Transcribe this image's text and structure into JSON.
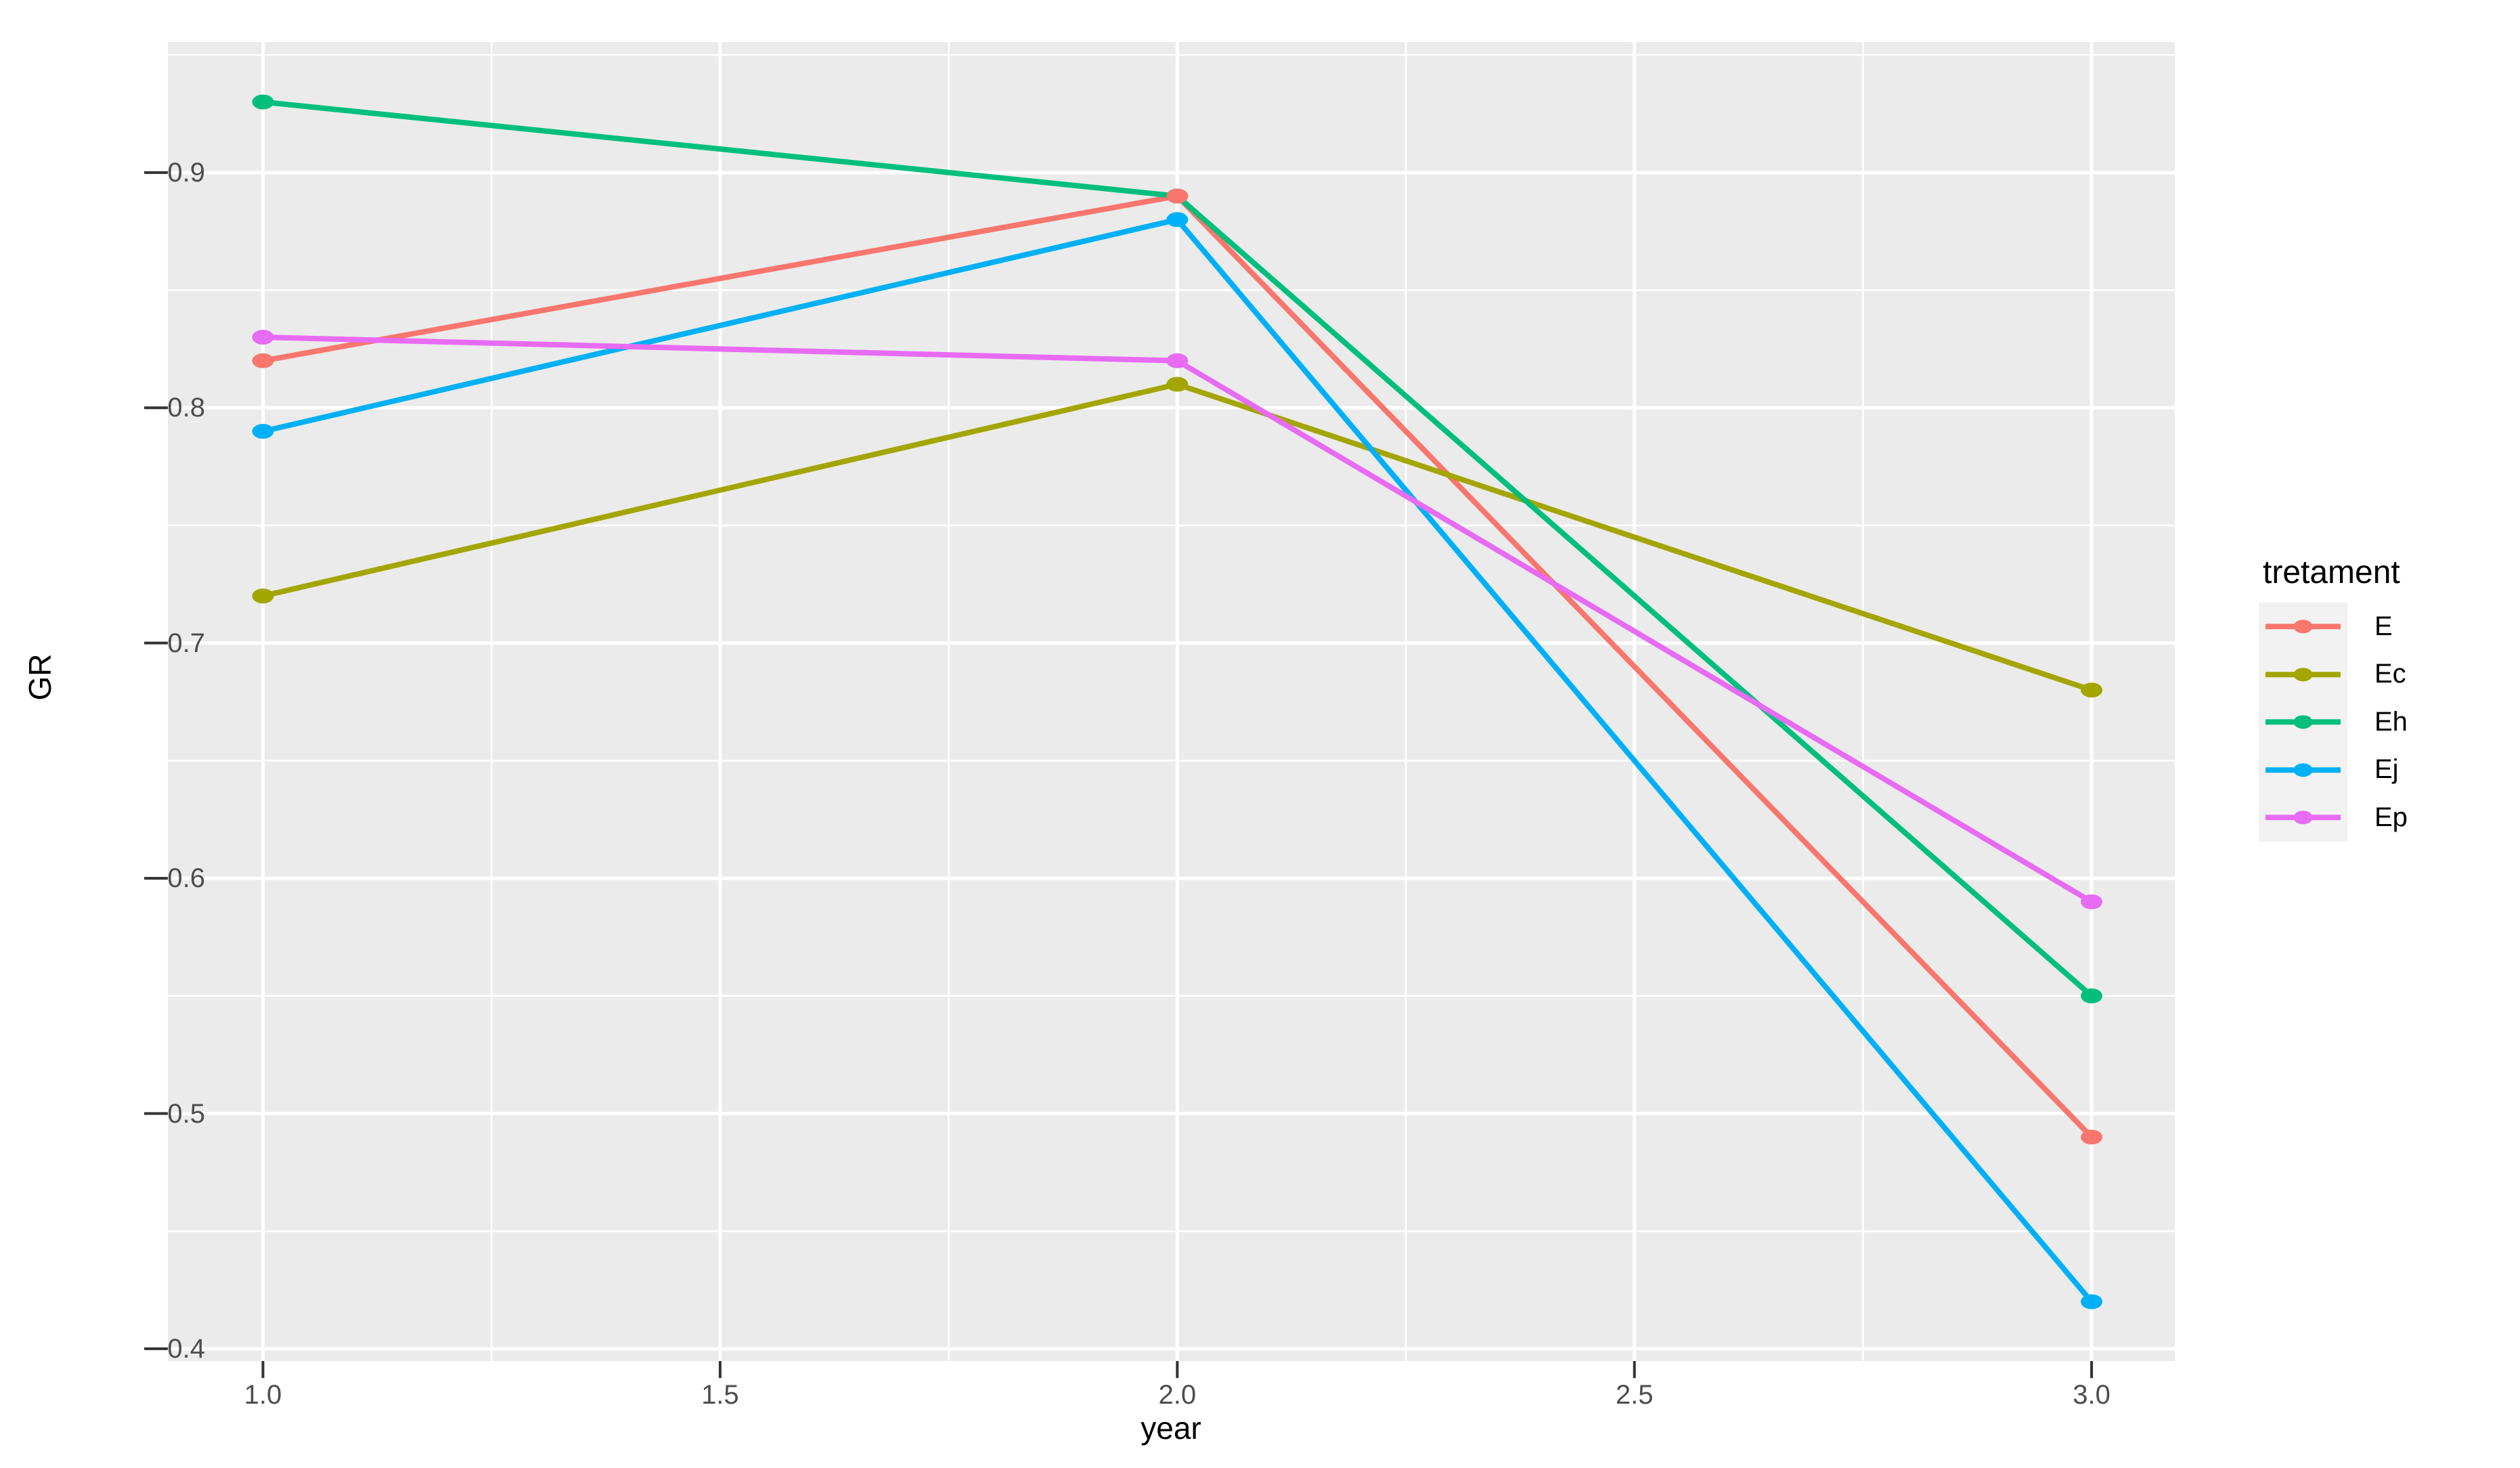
{
  "figure": {
    "background": "#FFFFFF"
  },
  "chart_data": {
    "type": "line",
    "title": "",
    "xlabel": "year",
    "ylabel": "GR",
    "x": [
      1,
      2,
      3
    ],
    "series": [
      {
        "name": "E",
        "color": "#F8766D",
        "values": [
          0.82,
          0.89,
          0.49
        ]
      },
      {
        "name": "Ec",
        "color": "#A3A500",
        "values": [
          0.72,
          0.81,
          0.68
        ]
      },
      {
        "name": "Eh",
        "color": "#00BF7D",
        "values": [
          0.93,
          0.89,
          0.55
        ]
      },
      {
        "name": "Ej",
        "color": "#00B0F6",
        "values": [
          0.79,
          0.88,
          0.42
        ]
      },
      {
        "name": "Ep",
        "color": "#E76BF3",
        "values": [
          0.83,
          0.82,
          0.59
        ]
      }
    ],
    "legend": {
      "title": "tretament",
      "position": "right",
      "entries": [
        "E",
        "Ec",
        "Eh",
        "Ej",
        "Ep"
      ]
    },
    "x_ticks": [
      1.0,
      1.5,
      2.0,
      2.5,
      3.0
    ],
    "x_tick_labels": [
      "1.0",
      "1.5",
      "2.0",
      "2.5",
      "3.0"
    ],
    "x_minor_ticks": [
      1.25,
      1.75,
      2.25,
      2.75
    ],
    "y_ticks": [
      0.4,
      0.5,
      0.6,
      0.7,
      0.8,
      0.9
    ],
    "y_tick_labels": [
      "0.4",
      "0.5",
      "0.6",
      "0.7",
      "0.8",
      "0.9"
    ],
    "y_minor_ticks": [
      0.45,
      0.55,
      0.65,
      0.75,
      0.85,
      0.95
    ],
    "xlim": [
      0.896,
      3.091
    ],
    "ylim": [
      0.3948,
      0.9555
    ],
    "grid": true,
    "theme": {
      "panel_bg": "#EBEBEB",
      "grid_color": "#FFFFFF",
      "axis_text_color": "#4D4D4D",
      "axis_title_color": "#000000",
      "tick_color": "#333333",
      "legend_key_bg": "#F2F2F2"
    }
  }
}
